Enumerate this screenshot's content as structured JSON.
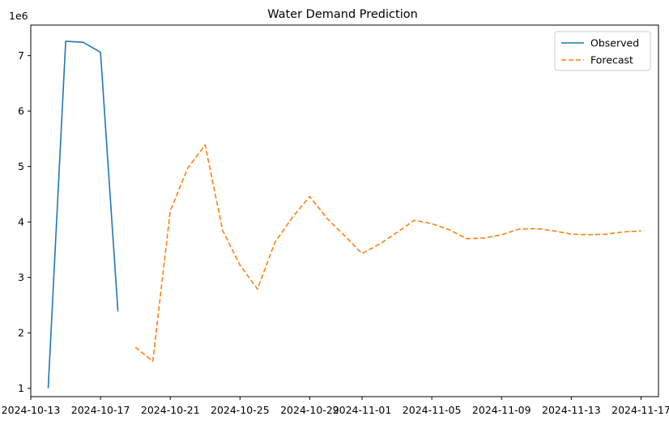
{
  "chart_data": {
    "type": "line",
    "title": "Water Demand Prediction",
    "xlabel": "",
    "ylabel": "",
    "y_offset_label": "1e6",
    "ylim": [
      0.85,
      7.55
    ],
    "xlim": [
      "2024-10-13",
      "2024-11-18"
    ],
    "x_ticks": [
      "2024-10-13",
      "2024-10-17",
      "2024-10-21",
      "2024-10-25",
      "2024-10-29",
      "2024-11-01",
      "2024-11-05",
      "2024-11-09",
      "2024-11-13",
      "2024-11-17"
    ],
    "y_ticks": [
      1,
      2,
      3,
      4,
      5,
      6,
      7
    ],
    "grid": false,
    "legend_position": "top-right",
    "series": [
      {
        "name": "Observed",
        "color": "#1f77b4",
        "style": "solid",
        "points": [
          {
            "x": "2024-10-14",
            "y": 1.0
          },
          {
            "x": "2024-10-15",
            "y": 7.26
          },
          {
            "x": "2024-10-16",
            "y": 7.24
          },
          {
            "x": "2024-10-17",
            "y": 7.06
          },
          {
            "x": "2024-10-18",
            "y": 2.39
          }
        ]
      },
      {
        "name": "Forecast",
        "color": "#ff7f0e",
        "style": "dashed",
        "points": [
          {
            "x": "2024-10-19",
            "y": 1.74
          },
          {
            "x": "2024-10-20",
            "y": 1.49
          },
          {
            "x": "2024-10-21",
            "y": 4.2
          },
          {
            "x": "2024-10-22",
            "y": 4.97
          },
          {
            "x": "2024-10-23",
            "y": 5.39
          },
          {
            "x": "2024-10-24",
            "y": 3.85
          },
          {
            "x": "2024-10-25",
            "y": 3.22
          },
          {
            "x": "2024-10-26",
            "y": 2.79
          },
          {
            "x": "2024-10-27",
            "y": 3.63
          },
          {
            "x": "2024-10-28",
            "y": 4.08
          },
          {
            "x": "2024-10-29",
            "y": 4.46
          },
          {
            "x": "2024-10-30",
            "y": 4.06
          },
          {
            "x": "2024-10-31",
            "y": 3.75
          },
          {
            "x": "2024-11-01",
            "y": 3.43
          },
          {
            "x": "2024-11-02",
            "y": 3.6
          },
          {
            "x": "2024-11-03",
            "y": 3.81
          },
          {
            "x": "2024-11-04",
            "y": 4.03
          },
          {
            "x": "2024-11-05",
            "y": 3.97
          },
          {
            "x": "2024-11-06",
            "y": 3.86
          },
          {
            "x": "2024-11-07",
            "y": 3.7
          },
          {
            "x": "2024-11-08",
            "y": 3.71
          },
          {
            "x": "2024-11-09",
            "y": 3.77
          },
          {
            "x": "2024-11-10",
            "y": 3.87
          },
          {
            "x": "2024-11-11",
            "y": 3.88
          },
          {
            "x": "2024-11-12",
            "y": 3.84
          },
          {
            "x": "2024-11-13",
            "y": 3.78
          },
          {
            "x": "2024-11-14",
            "y": 3.77
          },
          {
            "x": "2024-11-15",
            "y": 3.78
          },
          {
            "x": "2024-11-16",
            "y": 3.82
          },
          {
            "x": "2024-11-17",
            "y": 3.84
          }
        ]
      }
    ]
  }
}
